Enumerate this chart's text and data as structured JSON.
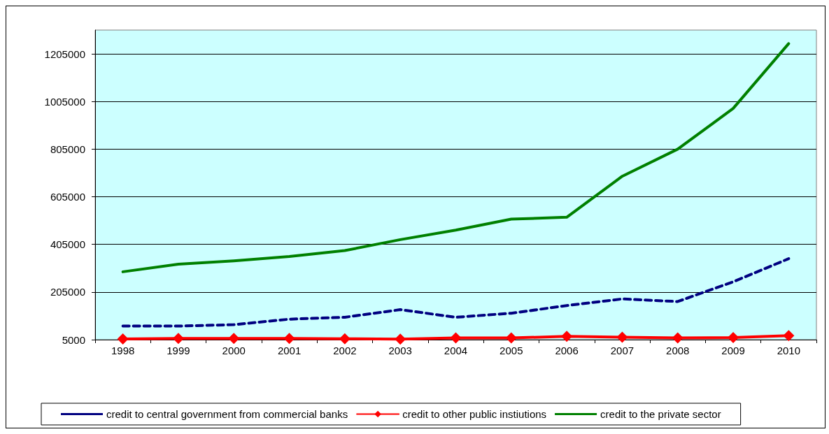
{
  "chart_data": {
    "type": "line",
    "categories": [
      "1998",
      "1999",
      "2000",
      "2001",
      "2002",
      "2003",
      "2004",
      "2005",
      "2006",
      "2007",
      "2008",
      "2009",
      "2010"
    ],
    "series": [
      {
        "name": "credit to central government from commercial banks",
        "color": "#000080",
        "line_style": "dashed",
        "marker": "none",
        "values": [
          62000,
          62000,
          68000,
          91000,
          99000,
          131000,
          99000,
          116000,
          148000,
          176000,
          165000,
          248000,
          345000
        ]
      },
      {
        "name": "credit to other public instiutions",
        "color": "#ff0000",
        "line_style": "solid",
        "marker": "diamond",
        "values": [
          8000,
          10000,
          10000,
          10000,
          9000,
          7000,
          12000,
          12000,
          19000,
          15000,
          12000,
          14000,
          22000
        ]
      },
      {
        "name": "credit to the private sector",
        "color": "#008000",
        "line_style": "solid",
        "marker": "none",
        "values": [
          290000,
          322000,
          336000,
          354000,
          379000,
          425000,
          465000,
          511000,
          519000,
          691000,
          805000,
          976000,
          1248000
        ]
      }
    ],
    "ylim": [
      5000,
      1305000
    ],
    "yticks": [
      5000,
      205000,
      405000,
      605000,
      805000,
      1005000,
      1205000
    ],
    "grid": "y",
    "legend": "bottom"
  }
}
